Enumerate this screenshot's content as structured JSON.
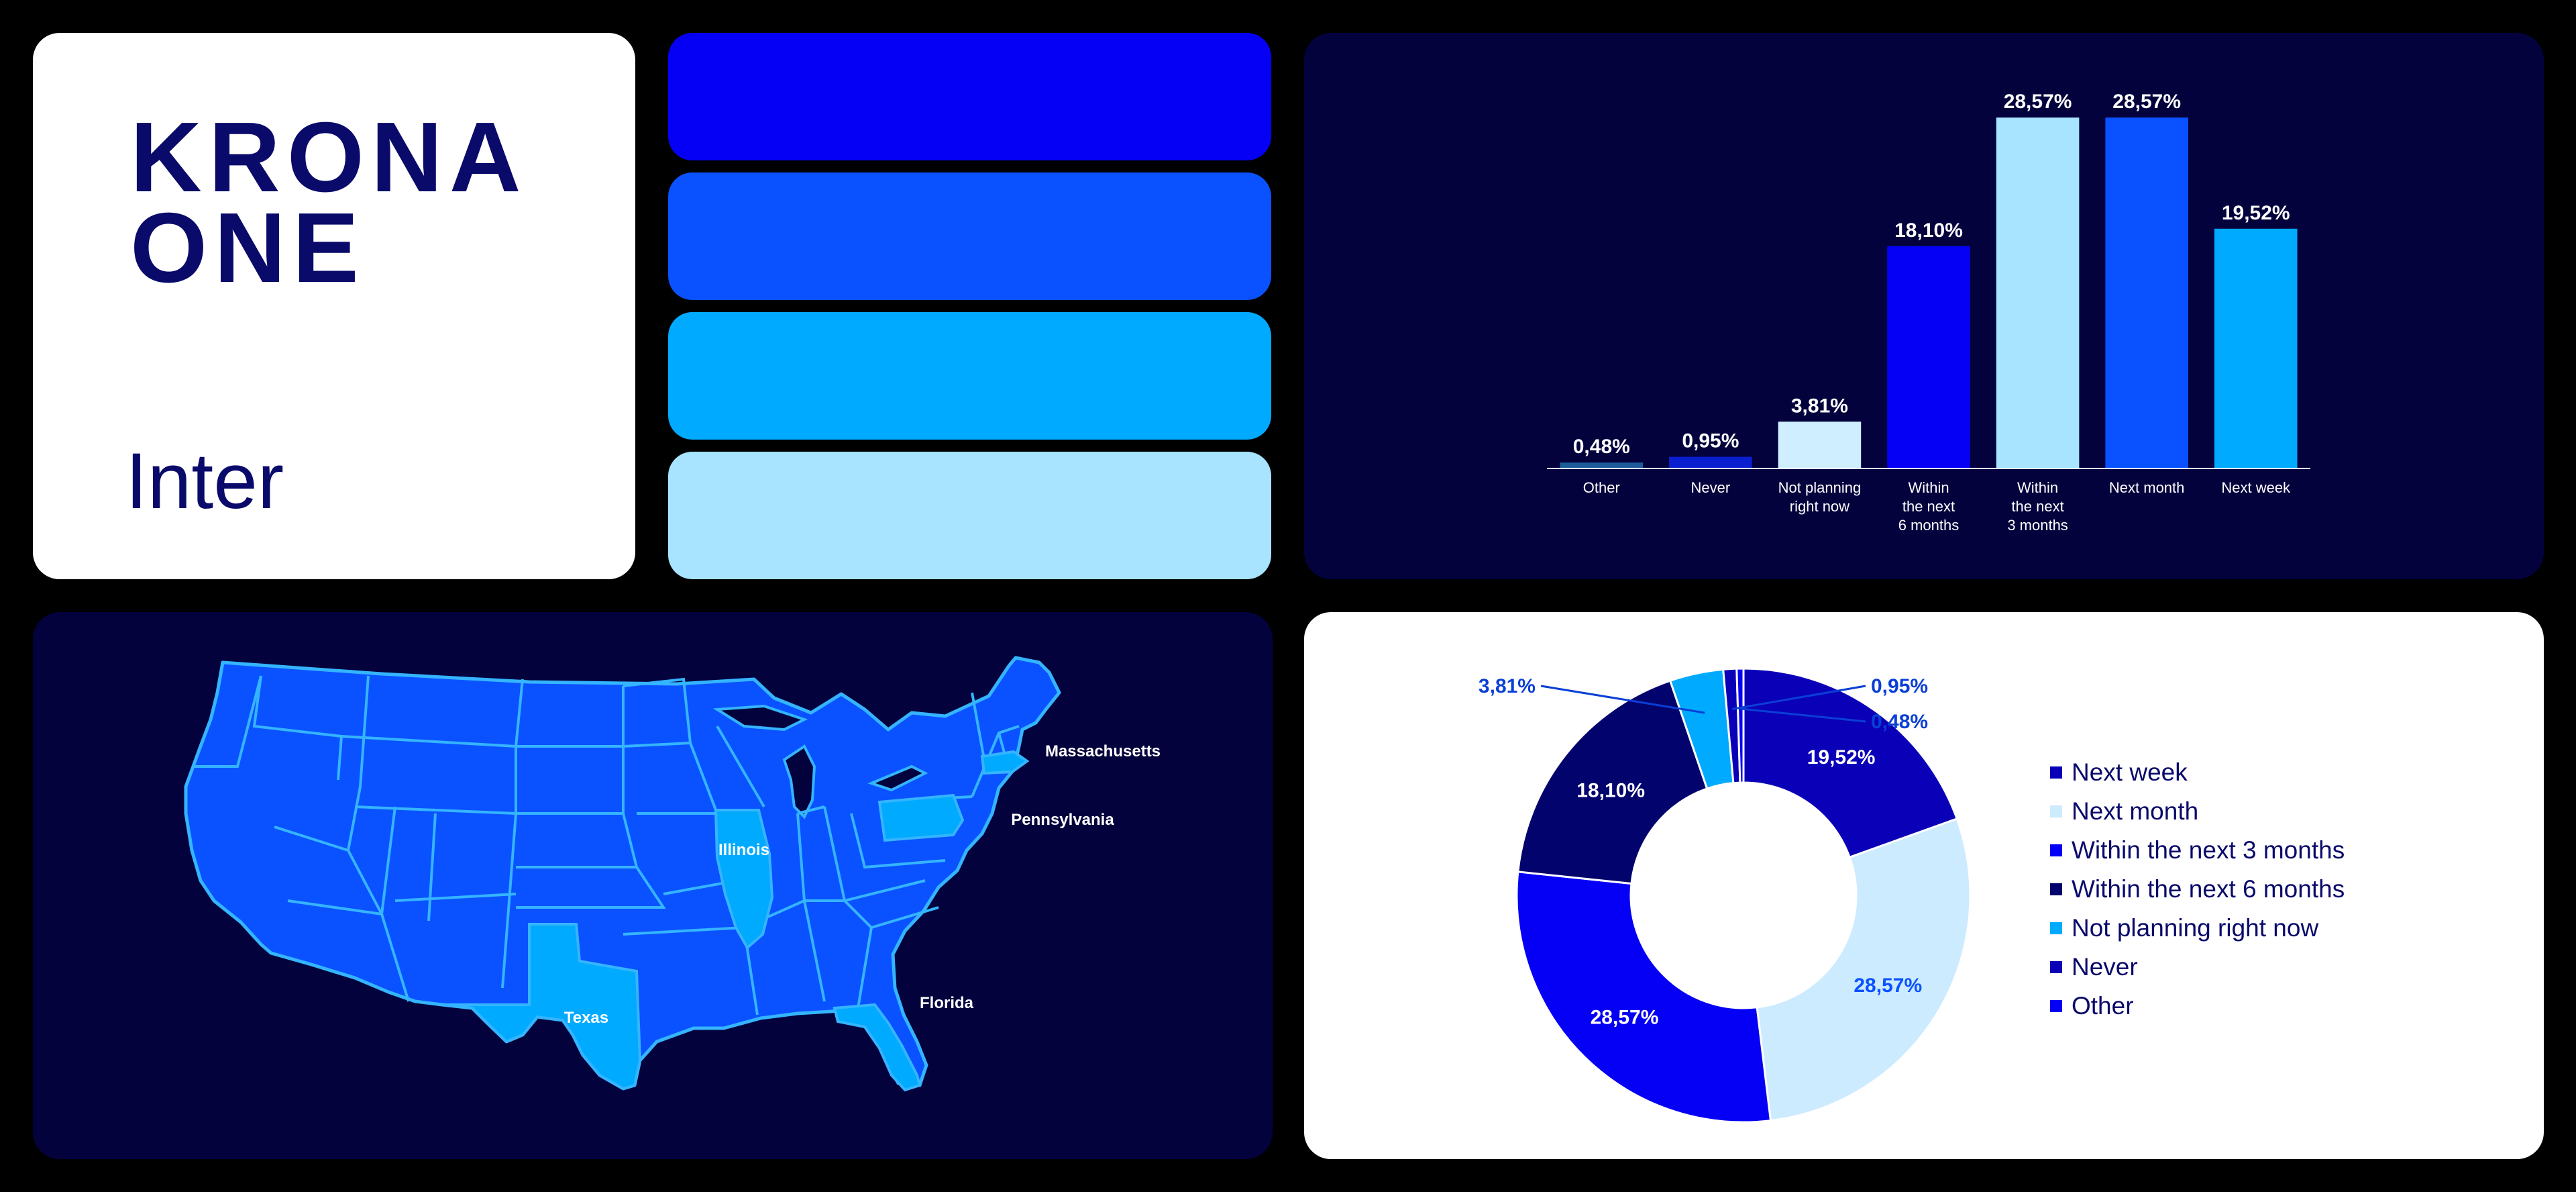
{
  "brand": {
    "logo_line1": "KRONA",
    "logo_line2": "ONE",
    "typeface": "Inter"
  },
  "palette": [
    "#0500f5",
    "#0a52ff",
    "#00aaff",
    "#a8e4ff"
  ],
  "colors": {
    "background": "#000000",
    "navy_panel": "#03023d",
    "navy_text": "#0a0a6b",
    "map_state": "#0a52ff",
    "map_highlight": "#00aaff",
    "map_border": "#35b4ff"
  },
  "map": {
    "states": [
      {
        "name": "Massachusetts"
      },
      {
        "name": "Pennsylvania"
      },
      {
        "name": "Illinois"
      },
      {
        "name": "Texas"
      },
      {
        "name": "Florida"
      }
    ]
  },
  "chart_data": [
    {
      "type": "bar",
      "categories": [
        "Other",
        "Never",
        "Not planning right now",
        "Within the next 6 months",
        "Within the next 3 months",
        "Next month",
        "Next week"
      ],
      "category_lines": [
        [
          "Other"
        ],
        [
          "Never"
        ],
        [
          "Not planning",
          "right now"
        ],
        [
          "Within",
          "the next",
          "6 months"
        ],
        [
          "Within",
          "the next",
          "3 months"
        ],
        [
          "Next month"
        ],
        [
          "Next week"
        ]
      ],
      "values": [
        0.48,
        0.95,
        3.81,
        18.1,
        28.57,
        28.57,
        19.52
      ],
      "value_labels": [
        "0,48%",
        "0,95%",
        "3,81%",
        "18,10%",
        "28,57%",
        "28,57%",
        "19,52%"
      ],
      "colors": [
        "#1b5c99",
        "#0a1fd0",
        "#cfeeff",
        "#0500f5",
        "#a8e4ff",
        "#0a52ff",
        "#00aaff"
      ],
      "ylim": [
        0,
        30
      ],
      "title": "",
      "xlabel": "",
      "ylabel": ""
    },
    {
      "type": "pie",
      "donut": true,
      "slices": [
        {
          "name": "Next week",
          "value": 19.52,
          "label": "19,52%",
          "color": "#0a00b8"
        },
        {
          "name": "Next month",
          "value": 28.57,
          "label": "28,57%",
          "color": "#cdebff"
        },
        {
          "name": "Within the next 3 months",
          "value": 28.57,
          "label": "28,57%",
          "color": "#0500f5"
        },
        {
          "name": "Within the next 6 months",
          "value": 18.1,
          "label": "18,10%",
          "color": "#03036e"
        },
        {
          "name": "Not planning right now",
          "value": 3.81,
          "label": "3,81%",
          "color": "#00aaff"
        },
        {
          "name": "Never",
          "value": 0.95,
          "label": "0,95%",
          "color": "#0a00b8"
        },
        {
          "name": "Other",
          "value": 0.48,
          "label": "0,48%",
          "color": "#0500f5"
        }
      ],
      "legend": [
        {
          "label": "Next week",
          "color": "#0a00b8"
        },
        {
          "label": "Next month",
          "color": "#cdebff"
        },
        {
          "label": "Within the next 3 months",
          "color": "#0500f5"
        },
        {
          "label": "Within the next 6 months",
          "color": "#03036e"
        },
        {
          "label": "Not planning right now",
          "color": "#00aaff"
        },
        {
          "label": "Never",
          "color": "#0a00b8"
        },
        {
          "label": "Other",
          "color": "#0500f5"
        }
      ],
      "legend_position": "right"
    }
  ]
}
